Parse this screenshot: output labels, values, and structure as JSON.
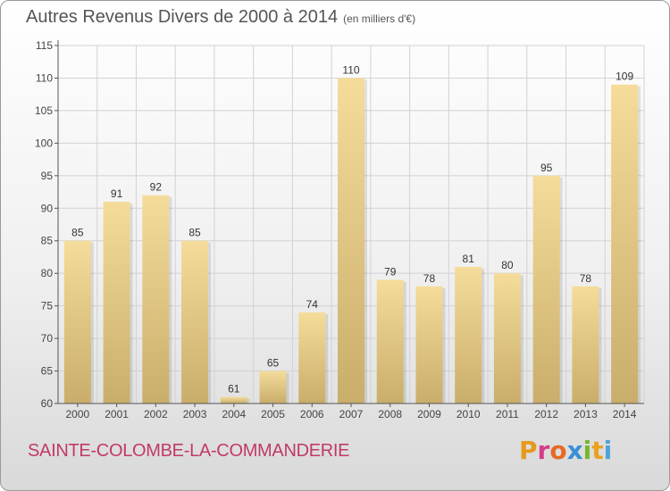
{
  "title": "Autres Revenus Divers de 2000 à 2014",
  "subtitle": "(en milliers d'€)",
  "commune": "SAINTE-COLOMBE-LA-COMMANDERIE",
  "logo": {
    "letters": [
      "P",
      "r",
      "o",
      "x",
      "i",
      "t",
      "i"
    ],
    "colors": [
      "#e69a1c",
      "#d23f87",
      "#e66a25",
      "#3a8fd6",
      "#75b82a",
      "#e9a21f",
      "#4ea3d8"
    ]
  },
  "colors": {
    "bar_top": "#f5dc9a",
    "bar_bottom": "#c9ad6b",
    "axis": "#555555",
    "grid": "#d2d2d2"
  },
  "chart_data": {
    "type": "bar",
    "categories": [
      "2000",
      "2001",
      "2002",
      "2003",
      "2004",
      "2005",
      "2006",
      "2007",
      "2008",
      "2009",
      "2010",
      "2011",
      "2012",
      "2013",
      "2014"
    ],
    "values": [
      85,
      91,
      92,
      85,
      61,
      65,
      74,
      110,
      79,
      78,
      81,
      80,
      95,
      78,
      109
    ],
    "yticks": [
      60,
      65,
      70,
      75,
      80,
      85,
      90,
      95,
      100,
      105,
      110,
      115
    ],
    "ylim": [
      60,
      115
    ],
    "grid": true
  }
}
